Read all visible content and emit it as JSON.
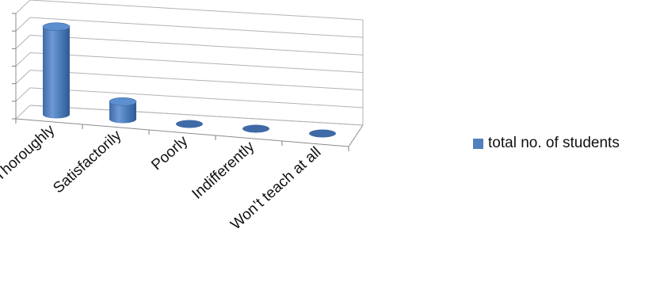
{
  "chart_data": {
    "type": "bar",
    "style": "3d-cylinder",
    "title": "",
    "xlabel": "",
    "ylabel": "",
    "categories": [
      "Thoroughly",
      "Satisfactorily",
      "Poorly",
      "Indifferently",
      "Won’t teach at all"
    ],
    "series": [
      {
        "name": "total no. of students",
        "values": [
          50,
          10,
          0,
          0,
          0
        ],
        "color": "#4F81BD"
      }
    ],
    "ylim": [
      0,
      60
    ],
    "y_ticks": [
      0,
      10,
      20,
      30,
      40,
      50,
      60
    ],
    "y_tick_labels_visible": false,
    "grid": true,
    "legend_position": "right"
  }
}
